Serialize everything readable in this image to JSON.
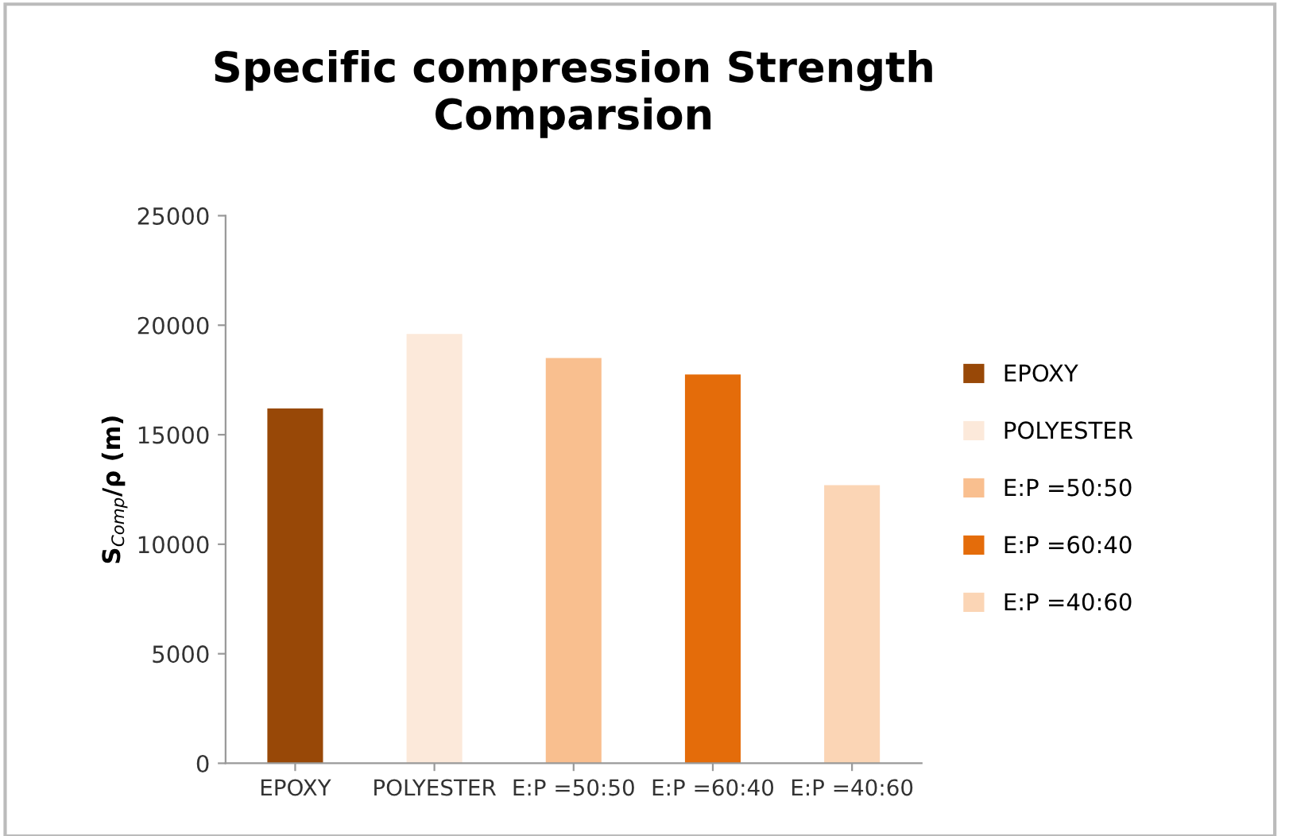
{
  "chart_data": {
    "type": "bar",
    "title": "Specific compression Strength\nComparsion",
    "ylabel": "S$_{Comp}$/ρ (m)",
    "categories": [
      "EPOXY",
      "POLYESTER",
      "E:P =50:50",
      "E:P =60:40",
      "E:P =40:60"
    ],
    "series": [
      {
        "name": "EPOXY",
        "color": "#984807",
        "values": [
          16200,
          null,
          null,
          null,
          null
        ]
      },
      {
        "name": "POLYESTER",
        "color": "#fce9da",
        "values": [
          null,
          19600,
          null,
          null,
          null
        ]
      },
      {
        "name": "E:P =50:50",
        "color": "#f9bf8f",
        "values": [
          null,
          null,
          18500,
          null,
          null
        ]
      },
      {
        "name": "E:P =60:40",
        "color": "#e46c0a",
        "values": [
          null,
          null,
          null,
          17750,
          null
        ]
      },
      {
        "name": "E:P =40:60",
        "color": "#fbd5b5",
        "values": [
          null,
          null,
          null,
          null,
          12700
        ]
      }
    ],
    "ylim": [
      0,
      25000
    ],
    "yticks": [
      0,
      5000,
      10000,
      15000,
      20000,
      25000
    ],
    "grid": false,
    "legend": "right"
  }
}
